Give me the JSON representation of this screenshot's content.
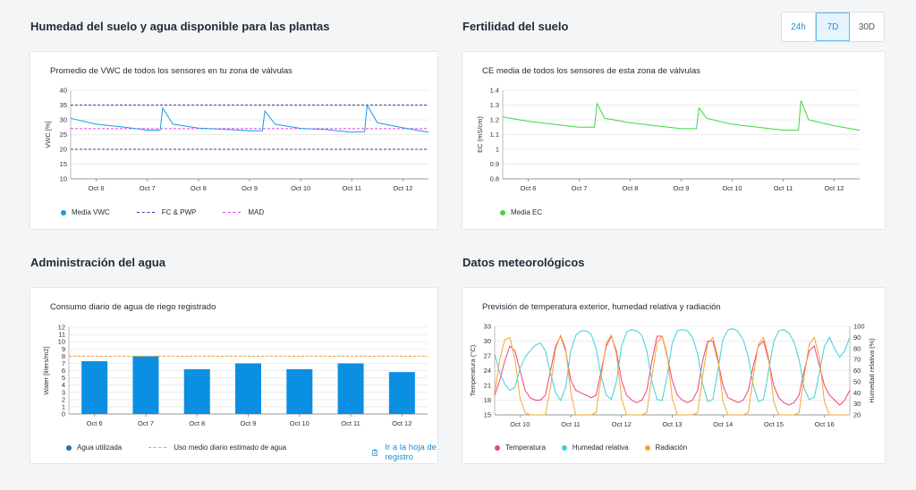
{
  "sections": {
    "soil_moisture": "Humedad del suelo y agua disponible para las plantas",
    "fertility": "Fertilidad del suelo",
    "water_admin": "Administración del agua",
    "weather": "Datos meteorológicos"
  },
  "range_selector": {
    "options": [
      "24h",
      "7D",
      "30D"
    ],
    "selected": "7D"
  },
  "cards": {
    "vwc": {
      "title": "Promedio de VWC de todos los sensores en tu zona de válvulas",
      "legend": {
        "series": "Media VWC",
        "fc_pwp": "FC & PWP",
        "mad": "MAD"
      }
    },
    "ec": {
      "title": "CE media de todos los sensores de esta zona de válvulas",
      "legend": {
        "series": "Media EC"
      }
    },
    "water": {
      "title": "Consumo diario de agua de riego registrado",
      "legend": {
        "series": "Agua utilizada",
        "avg": "Uso medio diario estimado de agua"
      },
      "link": "Ir a la hoja de registro"
    },
    "weather": {
      "title": "Previsión de temperatura exterior, humedad relativa y radiación",
      "legend": {
        "temp": "Temperatura",
        "hum": "Humedad relativa",
        "rad": "Radiación"
      }
    }
  },
  "colors": {
    "vwc": "#1a9be0",
    "ec": "#3fd43f",
    "bar": "#0b8fe3",
    "temp": "#f0437a",
    "hum": "#3fd0d6",
    "rad": "#f7a531",
    "fcpwp": "#3b3ba8",
    "mad": "#e83ee8",
    "avg": "#f0a040"
  },
  "chart_data": [
    {
      "type": "line",
      "ylabel": "VWC [%]",
      "ylim": [
        10,
        40
      ],
      "yticks": [
        10,
        15,
        20,
        25,
        30,
        35,
        40
      ],
      "xlim": [
        5.5,
        12.5
      ],
      "xticks": [
        6,
        7,
        8,
        9,
        10,
        11,
        12
      ],
      "xticklabels": [
        "Oct 6",
        "Oct 7",
        "Oct 8",
        "Oct 9",
        "Oct 10",
        "Oct 11",
        "Oct 12"
      ],
      "fc": 35,
      "pwp": 20,
      "mad": 27,
      "series": [
        {
          "name": "Media VWC",
          "x": [
            5.5,
            6.0,
            6.5,
            7.0,
            7.25,
            7.3,
            7.5,
            8.0,
            8.5,
            9.0,
            9.25,
            9.3,
            9.5,
            10.0,
            10.5,
            11.0,
            11.25,
            11.3,
            11.5,
            12.0,
            12.5
          ],
          "y": [
            30.5,
            28.5,
            27.6,
            26.5,
            26.5,
            34,
            28.5,
            27.2,
            26.8,
            26.3,
            26.3,
            33,
            28.5,
            27.1,
            26.7,
            25.8,
            26.0,
            35,
            29.0,
            27.3,
            25.8
          ]
        }
      ]
    },
    {
      "type": "line",
      "ylabel": "EC (mS/cm)",
      "ylim": [
        0.8,
        1.4
      ],
      "yticks": [
        0.8,
        0.9,
        1.0,
        1.1,
        1.2,
        1.3,
        1.4
      ],
      "yticklabels": [
        "0.8",
        "0.9",
        "1",
        "1.1",
        "1.2",
        "1.3",
        "1.4"
      ],
      "xlim": [
        5.5,
        12.5
      ],
      "xticks": [
        6,
        7,
        8,
        9,
        10,
        11,
        12
      ],
      "xticklabels": [
        "Oct 6",
        "Oct 7",
        "Oct 8",
        "Oct 9",
        "Oct 10",
        "Oct 11",
        "Oct 12"
      ],
      "series": [
        {
          "name": "Media EC",
          "x": [
            5.5,
            6.0,
            6.5,
            7.0,
            7.3,
            7.35,
            7.5,
            8.0,
            8.5,
            9.0,
            9.3,
            9.35,
            9.5,
            10.0,
            10.5,
            11.0,
            11.3,
            11.35,
            11.5,
            12.0,
            12.5
          ],
          "y": [
            1.22,
            1.19,
            1.17,
            1.15,
            1.15,
            1.31,
            1.21,
            1.18,
            1.16,
            1.14,
            1.14,
            1.28,
            1.21,
            1.17,
            1.15,
            1.13,
            1.13,
            1.33,
            1.2,
            1.16,
            1.13
          ]
        }
      ]
    },
    {
      "type": "bar",
      "ylabel": "Water [liters/m2]",
      "ylim": [
        0,
        12
      ],
      "yticks": [
        0,
        1,
        2,
        3,
        4,
        5,
        6,
        7,
        8,
        9,
        10,
        11,
        12
      ],
      "categories": [
        "Oct 6",
        "Oct 7",
        "Oct 8",
        "Oct 9",
        "Oct 10",
        "Oct 11",
        "Oct 12"
      ],
      "series": [
        {
          "name": "Agua utilizada",
          "values": [
            7.3,
            8.0,
            6.2,
            7.0,
            6.2,
            7.0,
            5.8
          ]
        }
      ],
      "avg_line": 8.0
    },
    {
      "type": "line",
      "ylabel": "Temperatura (°C)",
      "y2label": "Humedad relativa (%)",
      "ylim": [
        15,
        33
      ],
      "yticks": [
        15,
        18,
        21,
        24,
        27,
        30,
        33
      ],
      "y2lim": [
        20,
        100
      ],
      "y2ticks": [
        20,
        30,
        40,
        50,
        60,
        70,
        80,
        90,
        100
      ],
      "xlim": [
        9.5,
        16.5
      ],
      "xticks": [
        10,
        11,
        12,
        13,
        14,
        15,
        16
      ],
      "xticklabels": [
        "Oct 10",
        "Oct 11",
        "Oct 12",
        "Oct 13",
        "Oct 14",
        "Oct 15",
        "Oct 16"
      ],
      "series": [
        {
          "name": "Temperatura",
          "axis": "left",
          "x": [
            9.5,
            9.6,
            9.7,
            9.8,
            9.9,
            10.0,
            10.1,
            10.2,
            10.3,
            10.4,
            10.5,
            10.6,
            10.7,
            10.8,
            10.9,
            11.0,
            11.1,
            11.2,
            11.3,
            11.4,
            11.5,
            11.6,
            11.7,
            11.8,
            11.9,
            12.0,
            12.1,
            12.2,
            12.3,
            12.4,
            12.5,
            12.6,
            12.7,
            12.8,
            12.9,
            13.0,
            13.1,
            13.2,
            13.3,
            13.4,
            13.5,
            13.6,
            13.7,
            13.8,
            13.9,
            14.0,
            14.1,
            14.2,
            14.3,
            14.4,
            14.5,
            14.6,
            14.7,
            14.8,
            14.9,
            15.0,
            15.1,
            15.2,
            15.3,
            15.4,
            15.5,
            15.6,
            15.7,
            15.8,
            15.9,
            16.0,
            16.1,
            16.2,
            16.3,
            16.4,
            16.5
          ],
          "y": [
            19,
            22,
            26,
            29,
            28,
            24,
            20,
            18.5,
            18,
            18,
            19,
            24,
            29,
            31,
            28,
            22,
            20,
            19.5,
            19,
            18.5,
            19,
            24,
            29,
            31,
            28,
            22,
            19,
            18,
            17.5,
            18,
            20,
            26,
            31,
            31,
            27,
            22,
            19,
            18,
            17.5,
            18,
            20,
            26,
            30,
            30,
            26,
            21,
            18.5,
            18,
            17.5,
            18,
            20,
            25,
            29,
            30,
            26,
            21,
            18.5,
            17.5,
            17,
            17.5,
            19,
            24,
            28,
            29,
            25,
            21,
            19,
            18,
            17,
            18,
            20
          ]
        },
        {
          "name": "Humedad relativa",
          "axis": "right",
          "x": [
            9.5,
            9.6,
            9.7,
            9.8,
            9.9,
            10.0,
            10.1,
            10.2,
            10.3,
            10.4,
            10.5,
            10.6,
            10.7,
            10.8,
            10.9,
            11.0,
            11.1,
            11.2,
            11.3,
            11.4,
            11.5,
            11.6,
            11.7,
            11.8,
            11.9,
            12.0,
            12.1,
            12.2,
            12.3,
            12.4,
            12.5,
            12.6,
            12.7,
            12.8,
            12.9,
            13.0,
            13.1,
            13.2,
            13.3,
            13.4,
            13.5,
            13.6,
            13.7,
            13.8,
            13.9,
            14.0,
            14.1,
            14.2,
            14.3,
            14.4,
            14.5,
            14.6,
            14.7,
            14.8,
            14.9,
            15.0,
            15.1,
            15.2,
            15.3,
            15.4,
            15.5,
            15.6,
            15.7,
            15.8,
            15.9,
            16.0,
            16.1,
            16.2,
            16.3,
            16.4,
            16.5
          ],
          "y": [
            75,
            58,
            48,
            42,
            45,
            62,
            72,
            78,
            83,
            85,
            78,
            58,
            40,
            33,
            45,
            78,
            92,
            96,
            96,
            93,
            80,
            55,
            38,
            34,
            50,
            82,
            95,
            97,
            96,
            92,
            78,
            50,
            34,
            33,
            55,
            85,
            96,
            97,
            96,
            90,
            75,
            48,
            32,
            34,
            60,
            88,
            97,
            98,
            95,
            88,
            72,
            46,
            32,
            34,
            60,
            86,
            96,
            97,
            94,
            86,
            70,
            44,
            34,
            36,
            58,
            82,
            90,
            80,
            72,
            78,
            90
          ]
        },
        {
          "name": "Radiación",
          "axis": "right",
          "x": [
            9.5,
            9.6,
            9.7,
            9.8,
            9.9,
            10.0,
            10.1,
            10.2,
            10.3,
            10.4,
            10.5,
            10.6,
            10.7,
            10.8,
            10.9,
            11.0,
            11.1,
            11.2,
            11.3,
            11.4,
            11.5,
            11.6,
            11.7,
            11.8,
            11.9,
            12.0,
            12.1,
            12.2,
            12.3,
            12.4,
            12.5,
            12.6,
            12.7,
            12.8,
            12.9,
            13.0,
            13.1,
            13.2,
            13.3,
            13.4,
            13.5,
            13.6,
            13.7,
            13.8,
            13.9,
            14.0,
            14.1,
            14.2,
            14.3,
            14.4,
            14.5,
            14.6,
            14.7,
            14.8,
            14.9,
            15.0,
            15.1,
            15.2,
            15.3,
            15.4,
            15.5,
            15.6,
            15.7,
            15.8,
            15.9,
            16.0,
            16.1,
            16.2,
            16.3,
            16.4,
            16.5
          ],
          "y": [
            40,
            70,
            88,
            90,
            70,
            35,
            22,
            20,
            20,
            20,
            20,
            45,
            80,
            92,
            80,
            40,
            20,
            20,
            20,
            20,
            22,
            55,
            85,
            92,
            75,
            35,
            20,
            20,
            20,
            20,
            22,
            55,
            85,
            91,
            75,
            35,
            20,
            20,
            20,
            20,
            22,
            55,
            85,
            90,
            72,
            32,
            20,
            20,
            20,
            20,
            22,
            55,
            84,
            90,
            72,
            32,
            20,
            20,
            20,
            20,
            22,
            55,
            84,
            90,
            72,
            32,
            20,
            20,
            20,
            20,
            20
          ]
        }
      ]
    }
  ]
}
